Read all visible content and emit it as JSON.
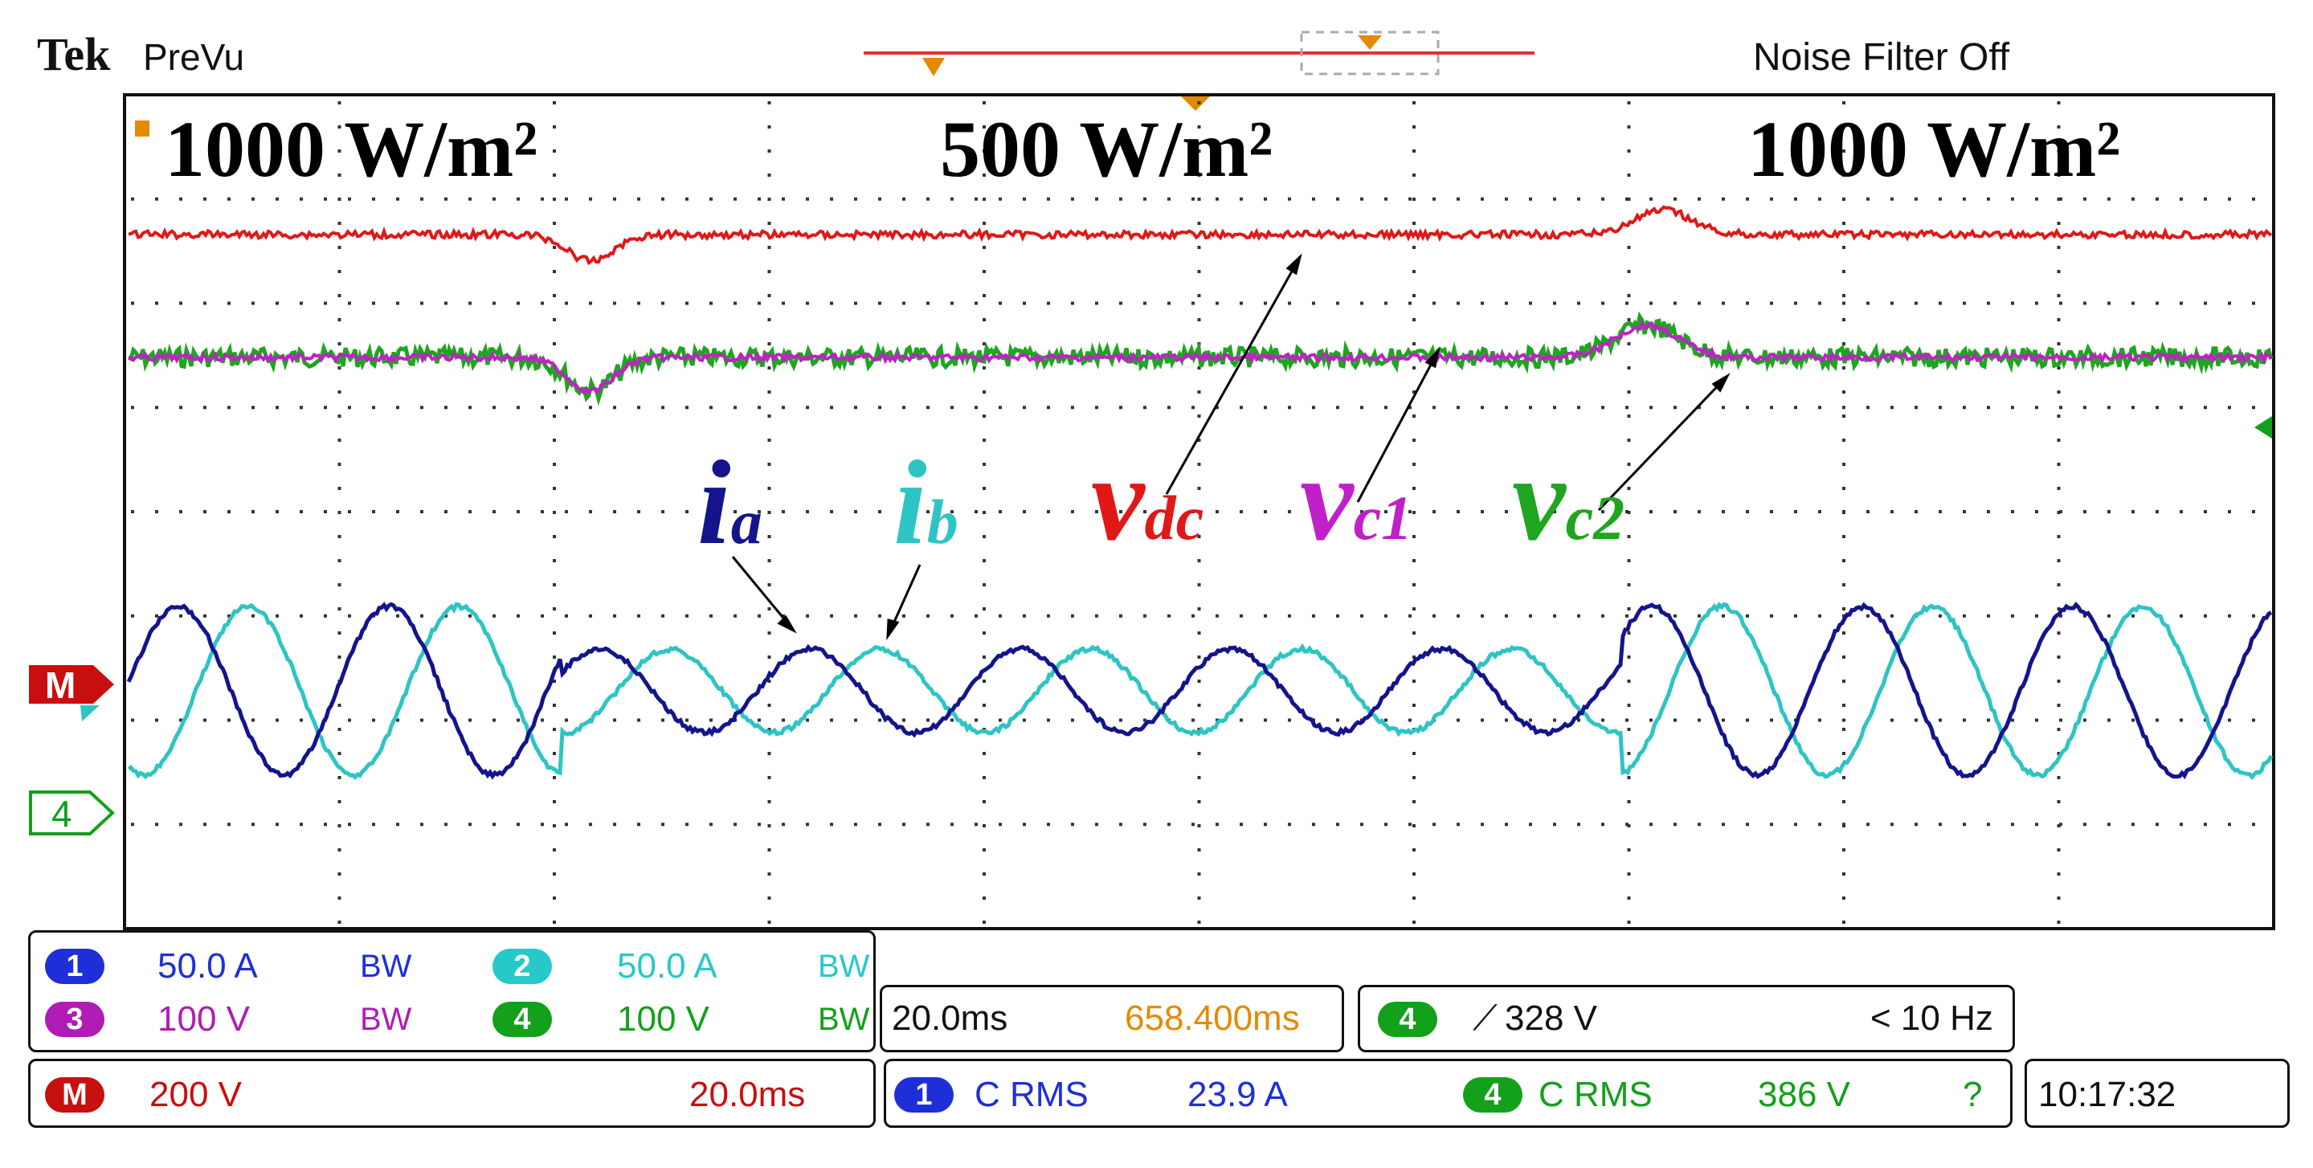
{
  "header": {
    "brand": "Tek",
    "mode": "PreVu",
    "noise_filter": "Noise Filter Off"
  },
  "annotations": {
    "irradiance_left": "1000 W/m²",
    "irradiance_mid": "500 W/m²",
    "irradiance_right": "1000 W/m²"
  },
  "signals": {
    "ia": {
      "main": "i",
      "sub": "a"
    },
    "ib": {
      "main": "i",
      "sub": "b"
    },
    "vdc": {
      "main": "v",
      "sub": "dc"
    },
    "vc1": {
      "main": "v",
      "sub": "c1"
    },
    "vc2": {
      "main": "v",
      "sub": "c2"
    }
  },
  "markers": {
    "math": "M",
    "ch4": "4"
  },
  "channels": [
    {
      "id": "1",
      "scale": "50.0 A",
      "bw": "BW",
      "color": "#1f2fd8"
    },
    {
      "id": "2",
      "scale": "50.0 A",
      "bw": "BW",
      "color": "#26c9c9"
    },
    {
      "id": "3",
      "scale": "100 V",
      "bw": "BW",
      "color": "#b01cb5"
    },
    {
      "id": "4",
      "scale": "100 V",
      "bw": "BW",
      "color": "#13a01b"
    }
  ],
  "math": {
    "id": "M",
    "scale": "200 V",
    "time": "20.0ms",
    "color": "#c80f0f"
  },
  "timebase": {
    "scale": "20.0ms",
    "position": "658.400ms"
  },
  "trigger": {
    "source": "4",
    "level": "328 V",
    "freq": "< 10 Hz"
  },
  "measurements": [
    {
      "source": "1",
      "type": "C RMS",
      "value": "23.9 A",
      "color": "#1f2fd8"
    },
    {
      "source": "4",
      "type": "C RMS",
      "value": "386 V",
      "flag": "?",
      "color": "#13a01b"
    }
  ],
  "clock": "10:17:32",
  "colors": {
    "ia": "#14148c",
    "ib": "#2ec4c4",
    "vdc": "#e01818",
    "vc1": "#c020c8",
    "vc2": "#1fa51f",
    "trigger": "#e58a00"
  }
}
